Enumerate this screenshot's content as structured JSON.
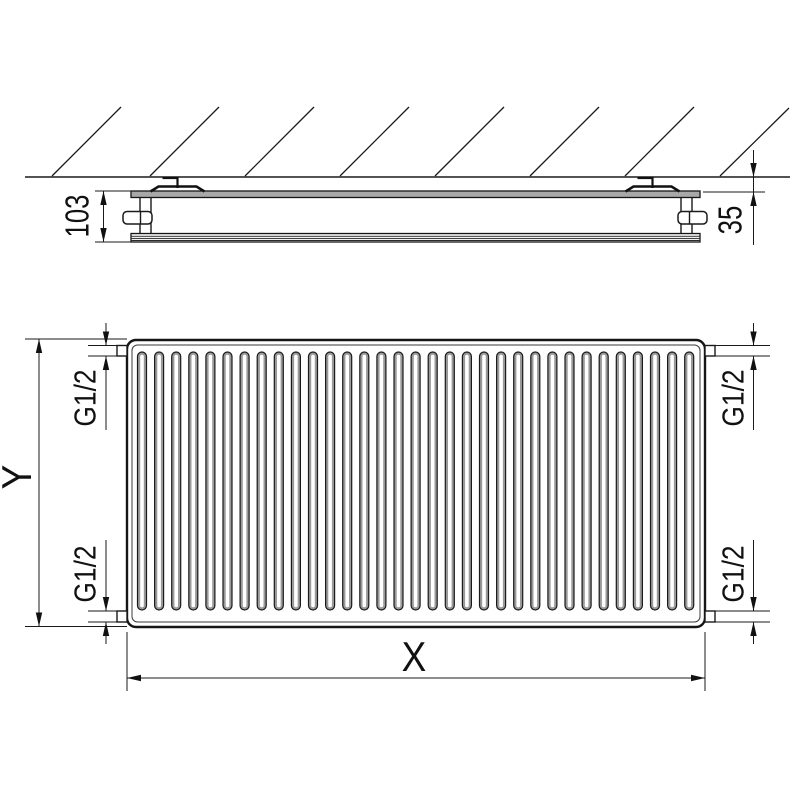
{
  "drawing": {
    "type": "radiator-technical-drawing",
    "top_view": {
      "depth_dimension": "103",
      "wall_distance_dimension": "35"
    },
    "front_view": {
      "height_dimension": "Y",
      "width_dimension": "X",
      "connections": {
        "top_left": "G1/2",
        "bottom_left": "G1/2",
        "top_right": "G1/2",
        "bottom_right": "G1/2"
      },
      "rib_count": 33
    },
    "colors": {
      "line": "#1a1a1a",
      "panel_fill": "#a8a8a8",
      "rib_fill": "#9a9a9a",
      "front_panel_fill": "#efefef"
    }
  }
}
